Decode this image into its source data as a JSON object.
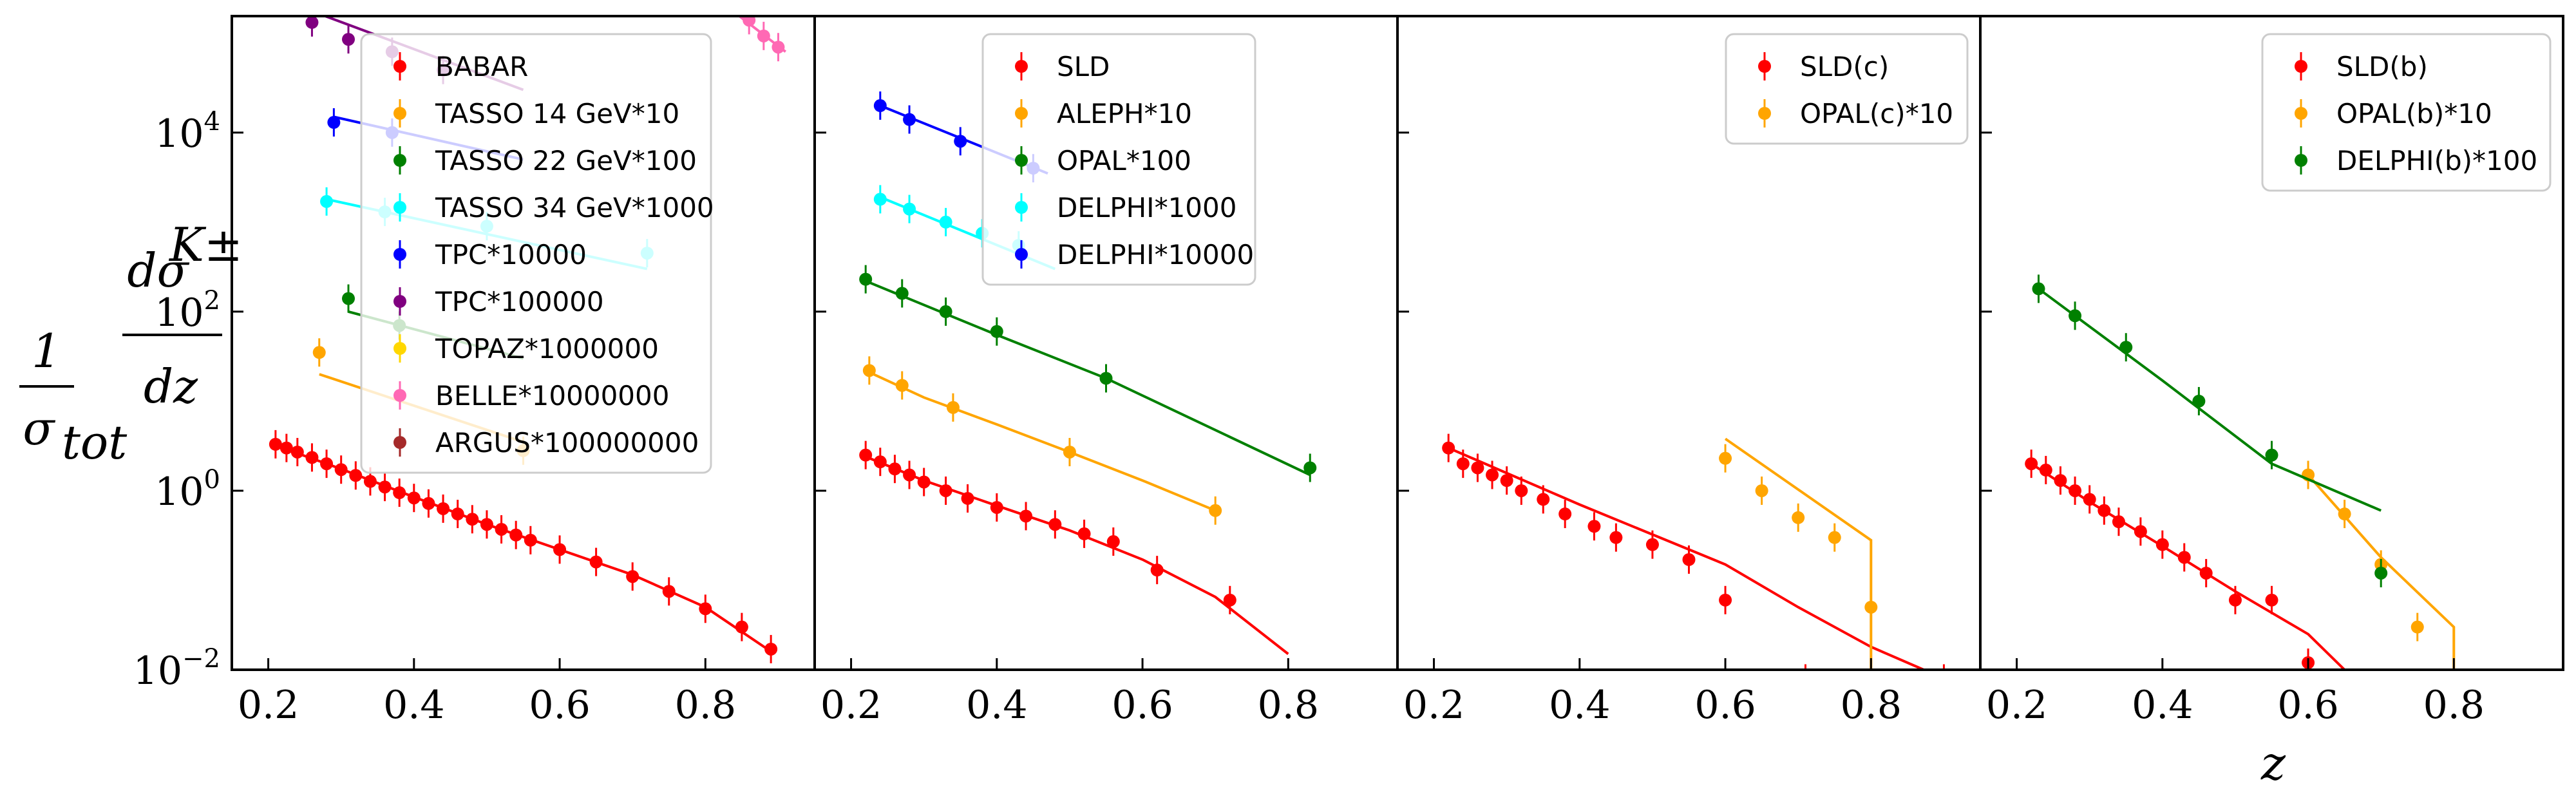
{
  "figure": {
    "xlabel": "z",
    "ylabel_numerator": "1",
    "ylabel_denominator_base": "σ",
    "ylabel_denominator_sub": "tot",
    "ylabel_fraction_top": "dσ",
    "ylabel_fraction_sup": "K±",
    "ylabel_fraction_bottom": "dz"
  },
  "chart_data": [
    {
      "type": "scatter",
      "xlim": [
        0.15,
        0.95
      ],
      "ylim": [
        0.01,
        200000
      ],
      "yscale": "log",
      "xticks": [
        0.2,
        0.4,
        0.6,
        0.8
      ],
      "xtick_labels": [
        "0.2",
        "0.4",
        "0.6",
        "0.8"
      ],
      "yticks": [
        0.01,
        1,
        100,
        10000
      ],
      "ytick_labels": [
        [
          "10",
          "−2"
        ],
        [
          "10",
          "0"
        ],
        [
          "10",
          "2"
        ],
        [
          "10",
          "4"
        ]
      ],
      "legend_position": "upper-center",
      "series": [
        {
          "name": "BABAR",
          "color": "#ff0000",
          "points": [
            [
              0.21,
              3.3
            ],
            [
              0.225,
              3.0
            ],
            [
              0.24,
              2.7
            ],
            [
              0.26,
              2.35
            ],
            [
              0.28,
              2.0
            ],
            [
              0.3,
              1.72
            ],
            [
              0.32,
              1.48
            ],
            [
              0.34,
              1.27
            ],
            [
              0.36,
              1.1
            ],
            [
              0.38,
              0.95
            ],
            [
              0.4,
              0.83
            ],
            [
              0.42,
              0.72
            ],
            [
              0.44,
              0.63
            ],
            [
              0.46,
              0.55
            ],
            [
              0.48,
              0.48
            ],
            [
              0.5,
              0.42
            ],
            [
              0.52,
              0.37
            ],
            [
              0.54,
              0.32
            ],
            [
              0.56,
              0.28
            ],
            [
              0.6,
              0.22
            ],
            [
              0.65,
              0.16
            ],
            [
              0.7,
              0.11
            ],
            [
              0.75,
              0.075
            ],
            [
              0.8,
              0.048
            ],
            [
              0.85,
              0.03
            ],
            [
              0.89,
              0.017
            ]
          ],
          "fit": [
            [
              0.21,
              3.2
            ],
            [
              0.3,
              1.75
            ],
            [
              0.4,
              0.85
            ],
            [
              0.5,
              0.42
            ],
            [
              0.6,
              0.22
            ],
            [
              0.7,
              0.115
            ],
            [
              0.8,
              0.05
            ],
            [
              0.89,
              0.016
            ]
          ]
        },
        {
          "name": "TASSO 14 GeV*10",
          "color": "#ffa500",
          "points": [
            [
              0.27,
              35
            ],
            [
              0.55,
              2.8
            ]
          ],
          "fit": [
            [
              0.27,
              20
            ],
            [
              0.55,
              3.5
            ]
          ]
        },
        {
          "name": "TASSO 22 GeV*100",
          "color": "#008000",
          "points": [
            [
              0.31,
              140
            ],
            [
              0.38,
              70
            ]
          ],
          "fit": [
            [
              0.31,
              100
            ],
            [
              0.55,
              30
            ]
          ]
        },
        {
          "name": "TASSO 34 GeV*1000",
          "color": "#00ffff",
          "points": [
            [
              0.28,
              1700
            ],
            [
              0.36,
              1300
            ],
            [
              0.5,
              900
            ],
            [
              0.72,
              450
            ]
          ],
          "fit": [
            [
              0.28,
              1800
            ],
            [
              0.72,
              300
            ]
          ]
        },
        {
          "name": "TPC*10000",
          "color": "#0000ff",
          "points": [
            [
              0.29,
              13000
            ],
            [
              0.37,
              10000
            ]
          ],
          "fit": [
            [
              0.29,
              15000
            ],
            [
              0.55,
              5000
            ]
          ]
        },
        {
          "name": "TPC*100000",
          "color": "#800080",
          "points": [
            [
              0.26,
              170000
            ],
            [
              0.31,
              110000
            ],
            [
              0.37,
              80000
            ],
            [
              0.44,
              50000
            ]
          ],
          "fit": [
            [
              0.22,
              300000
            ],
            [
              0.55,
              30000
            ]
          ]
        },
        {
          "name": "TOPAZ*1000000",
          "color": "#ffd700",
          "points": [],
          "fit": []
        },
        {
          "name": "BELLE*10000000",
          "color": "#ff69b4",
          "points": [
            [
              0.86,
              180000
            ],
            [
              0.88,
              120000
            ],
            [
              0.9,
              90000
            ]
          ],
          "fit": [
            [
              0.84,
              220000
            ],
            [
              0.91,
              80000
            ]
          ]
        },
        {
          "name": "ARGUS*100000000",
          "color": "#a52a2a",
          "points": [],
          "fit": []
        }
      ]
    },
    {
      "type": "scatter",
      "xlim": [
        0.15,
        0.95
      ],
      "ylim": [
        0.01,
        200000
      ],
      "yscale": "log",
      "xticks": [
        0.2,
        0.4,
        0.6,
        0.8
      ],
      "xtick_labels": [
        "0.2",
        "0.4",
        "0.6",
        "0.8"
      ],
      "legend_position": "upper-center",
      "series": [
        {
          "name": "SLD",
          "color": "#ff0000",
          "points": [
            [
              0.22,
              2.5
            ],
            [
              0.24,
              2.1
            ],
            [
              0.26,
              1.75
            ],
            [
              0.28,
              1.5
            ],
            [
              0.3,
              1.25
            ],
            [
              0.33,
              1.0
            ],
            [
              0.36,
              0.82
            ],
            [
              0.4,
              0.65
            ],
            [
              0.44,
              0.52
            ],
            [
              0.48,
              0.42
            ],
            [
              0.52,
              0.33
            ],
            [
              0.56,
              0.27
            ],
            [
              0.62,
              0.13
            ],
            [
              0.72,
              0.06
            ]
          ],
          "fit": [
            [
              0.22,
              2.4
            ],
            [
              0.3,
              1.3
            ],
            [
              0.4,
              0.68
            ],
            [
              0.5,
              0.36
            ],
            [
              0.6,
              0.17
            ],
            [
              0.7,
              0.065
            ],
            [
              0.8,
              0.015
            ]
          ]
        },
        {
          "name": "ALEPH*10",
          "color": "#ffa500",
          "points": [
            [
              0.225,
              22
            ],
            [
              0.27,
              15
            ],
            [
              0.34,
              8.5
            ],
            [
              0.5,
              2.7
            ],
            [
              0.7,
              0.6
            ]
          ],
          "fit": [
            [
              0.225,
              21
            ],
            [
              0.3,
              11
            ],
            [
              0.4,
              5.5
            ],
            [
              0.5,
              2.7
            ],
            [
              0.6,
              1.3
            ],
            [
              0.7,
              0.6
            ]
          ]
        },
        {
          "name": "OPAL*100",
          "color": "#008000",
          "points": [
            [
              0.22,
              230
            ],
            [
              0.27,
              160
            ],
            [
              0.33,
              100
            ],
            [
              0.4,
              60
            ],
            [
              0.55,
              18
            ],
            [
              0.83,
              1.8
            ]
          ],
          "fit": [
            [
              0.22,
              220
            ],
            [
              0.4,
              55
            ],
            [
              0.55,
              18
            ],
            [
              0.83,
              1.5
            ]
          ]
        },
        {
          "name": "DELPHI*1000",
          "color": "#00ffff",
          "points": [
            [
              0.24,
              1800
            ],
            [
              0.28,
              1400
            ],
            [
              0.33,
              1000
            ],
            [
              0.38,
              750
            ],
            [
              0.43,
              550
            ]
          ],
          "fit": [
            [
              0.24,
              1900
            ],
            [
              0.48,
              300
            ]
          ]
        },
        {
          "name": "DELPHI*10000",
          "color": "#0000ff",
          "points": [
            [
              0.24,
              20000
            ],
            [
              0.28,
              14000
            ],
            [
              0.35,
              8000
            ],
            [
              0.45,
              4000
            ]
          ],
          "fit": [
            [
              0.24,
              20000
            ],
            [
              0.47,
              3500
            ]
          ]
        }
      ]
    },
    {
      "type": "scatter",
      "xlim": [
        0.15,
        0.95
      ],
      "ylim": [
        0.01,
        200000
      ],
      "yscale": "log",
      "xticks": [
        0.2,
        0.4,
        0.6,
        0.8
      ],
      "xtick_labels": [
        "0.2",
        "0.4",
        "0.6",
        "0.8"
      ],
      "legend_position": "upper-right",
      "series": [
        {
          "name": "SLD(c)",
          "color": "#ff0000",
          "points": [
            [
              0.22,
              3.0
            ],
            [
              0.24,
              2.0
            ],
            [
              0.26,
              1.8
            ],
            [
              0.28,
              1.5
            ],
            [
              0.3,
              1.3
            ],
            [
              0.32,
              1.0
            ],
            [
              0.35,
              0.8
            ],
            [
              0.38,
              0.55
            ],
            [
              0.42,
              0.4
            ],
            [
              0.45,
              0.3
            ],
            [
              0.5,
              0.25
            ],
            [
              0.55,
              0.17
            ],
            [
              0.6,
              0.06
            ],
            [
              0.71,
              0.008
            ],
            [
              0.9,
              0.008
            ]
          ],
          "fit": [
            [
              0.22,
              3.0
            ],
            [
              0.4,
              0.7
            ],
            [
              0.6,
              0.15
            ],
            [
              0.7,
              0.05
            ],
            [
              0.8,
              0.018
            ],
            [
              0.9,
              0.008
            ]
          ]
        },
        {
          "name": "OPAL(c)*10",
          "color": "#ffa500",
          "points": [
            [
              0.6,
              2.3
            ],
            [
              0.65,
              1.0
            ],
            [
              0.7,
              0.5
            ],
            [
              0.75,
              0.3
            ],
            [
              0.8,
              0.05
            ]
          ],
          "fit": [
            [
              0.6,
              3.8
            ],
            [
              0.8,
              0.28
            ],
            [
              0.8,
              0.005
            ]
          ]
        }
      ]
    },
    {
      "type": "scatter",
      "xlim": [
        0.15,
        0.95
      ],
      "ylim": [
        0.01,
        200000
      ],
      "yscale": "log",
      "xticks": [
        0.2,
        0.4,
        0.6,
        0.8
      ],
      "xtick_labels": [
        "0.2",
        "0.4",
        "0.6",
        "0.8"
      ],
      "legend_position": "upper-right",
      "series": [
        {
          "name": "SLD(b)",
          "color": "#ff0000",
          "points": [
            [
              0.22,
              2.0
            ],
            [
              0.24,
              1.7
            ],
            [
              0.26,
              1.3
            ],
            [
              0.28,
              1.0
            ],
            [
              0.3,
              0.8
            ],
            [
              0.32,
              0.6
            ],
            [
              0.34,
              0.45
            ],
            [
              0.37,
              0.35
            ],
            [
              0.4,
              0.25
            ],
            [
              0.43,
              0.18
            ],
            [
              0.46,
              0.12
            ],
            [
              0.5,
              0.06
            ],
            [
              0.55,
              0.06
            ],
            [
              0.6,
              0.012
            ]
          ],
          "fit": [
            [
              0.22,
              2.0
            ],
            [
              0.3,
              0.75
            ],
            [
              0.4,
              0.24
            ],
            [
              0.5,
              0.075
            ],
            [
              0.6,
              0.025
            ],
            [
              0.65,
              0.01
            ]
          ]
        },
        {
          "name": "OPAL(b)*10",
          "color": "#ffa500",
          "points": [
            [
              0.6,
              1.5
            ],
            [
              0.65,
              0.55
            ],
            [
              0.7,
              0.15
            ],
            [
              0.75,
              0.03
            ]
          ],
          "fit": [
            [
              0.6,
              1.5
            ],
            [
              0.7,
              0.18
            ],
            [
              0.8,
              0.03
            ],
            [
              0.8,
              0.005
            ]
          ]
        },
        {
          "name": "DELPHI(b)*100",
          "color": "#008000",
          "points": [
            [
              0.23,
              180
            ],
            [
              0.28,
              90
            ],
            [
              0.35,
              40
            ],
            [
              0.45,
              10
            ],
            [
              0.55,
              2.5
            ],
            [
              0.7,
              0.12
            ]
          ],
          "fit": [
            [
              0.23,
              180
            ],
            [
              0.4,
              17
            ],
            [
              0.55,
              2.0
            ],
            [
              0.7,
              0.6
            ]
          ]
        }
      ]
    }
  ]
}
